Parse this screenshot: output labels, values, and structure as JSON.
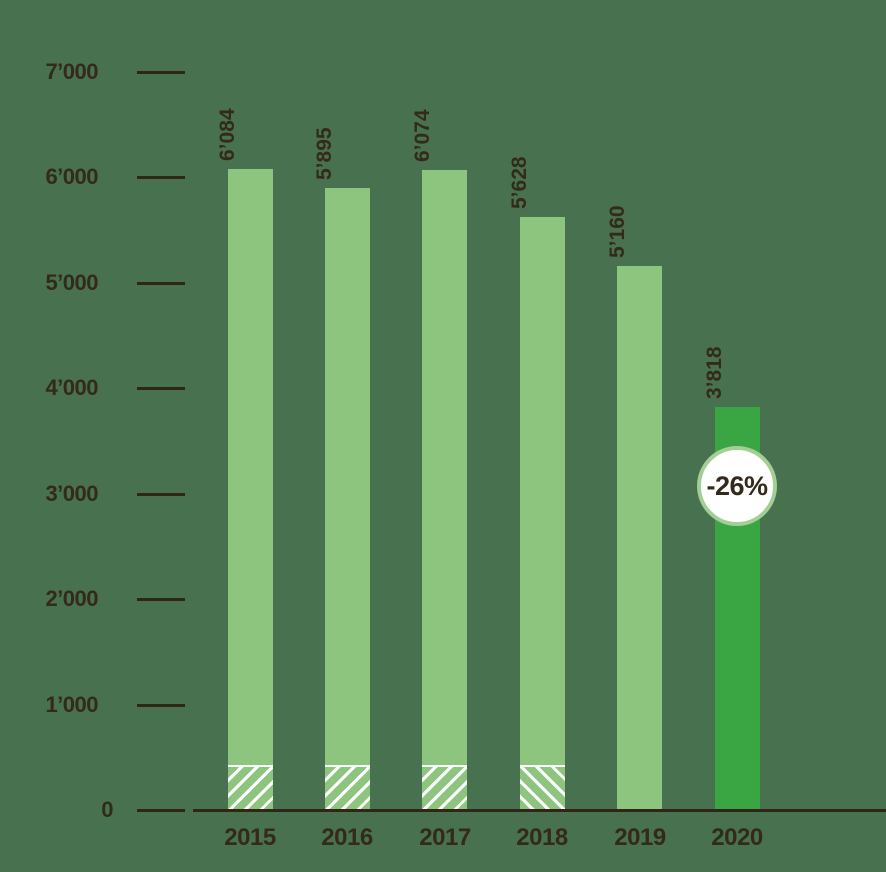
{
  "chart_data": {
    "type": "bar",
    "title": "",
    "categories": [
      "2015",
      "2016",
      "2017",
      "2018",
      "2019",
      "2020"
    ],
    "values": [
      6084,
      5895,
      6074,
      5628,
      5160,
      3818
    ],
    "value_labels": [
      "6’084",
      "5’895",
      "6’074",
      "5’628",
      "5’160",
      "3’818"
    ],
    "y_ticks": [
      "7’000",
      "6’000",
      "5’000",
      "4’000",
      "3’000",
      "2’000",
      "1’000",
      "0"
    ],
    "y_tick_values": [
      7000,
      6000,
      5000,
      4000,
      3000,
      2000,
      1000,
      0
    ],
    "ylim": [
      0,
      7000
    ],
    "xlabel": "",
    "ylabel": "",
    "legend": "none",
    "grid": "tick-marks-only",
    "bar_color_default": "#8ec57e",
    "bar_color_highlight": "#3aa543",
    "highlight_index": 5,
    "hatched_base_segments": {
      "indices": [
        0,
        1,
        2,
        3
      ],
      "directions": [
        "ne",
        "ne",
        "ne",
        "se"
      ],
      "approx_height_value": 430,
      "stripe_color": "#ffffff"
    },
    "badge": {
      "label": "-26%",
      "attached_to_category": "2020",
      "fill": "#ffffff",
      "ring_color": "#a3ce95",
      "text_color": "#332a1b"
    },
    "background_color": "#48714f",
    "axis_color": "#2f2617",
    "text_color": "#332a1b"
  }
}
